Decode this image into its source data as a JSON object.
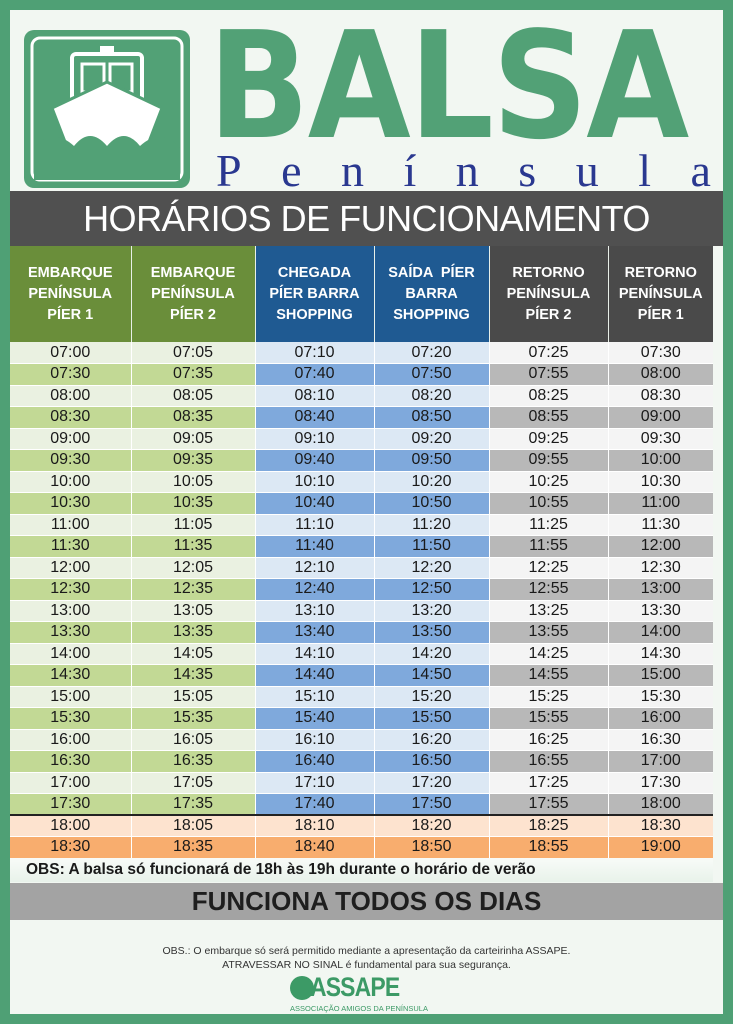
{
  "header": {
    "logo_icon": "ferry-boat-icon",
    "title": "BALSA",
    "subtitle_letters": [
      "P",
      "e",
      "n",
      "í",
      "n",
      "s",
      "u",
      "l",
      "a"
    ],
    "subtitle": "Península",
    "colors": {
      "brand_green": "#52a176",
      "subtitle_blue": "#2a3890"
    }
  },
  "banner": {
    "title": "HORÁRIOS DE FUNCIONAMENTO"
  },
  "table": {
    "columns": [
      {
        "line1": "EMBARQUE",
        "line2": "PENÍNSULA",
        "line3": "PÍER 1",
        "group": "green"
      },
      {
        "line1": "EMBARQUE",
        "line2": "PENÍNSULA",
        "line3": "PÍER 2",
        "group": "green"
      },
      {
        "line1": "CHEGADA",
        "line2": "PÍER BARRA",
        "line3": "SHOPPING",
        "group": "blue"
      },
      {
        "line1": "SAÍDA  PÍER",
        "line2": "BARRA",
        "line3": "SHOPPING",
        "group": "blue"
      },
      {
        "line1": "RETORNO",
        "line2": "PENÍNSULA",
        "line3": "PÍER 2",
        "group": "dark"
      },
      {
        "line1": "RETORNO",
        "line2": "PENÍNSULA",
        "line3": "PÍER 1",
        "group": "dark"
      }
    ],
    "rows": [
      [
        "07:00",
        "07:05",
        "07:10",
        "07:20",
        "07:25",
        "07:30"
      ],
      [
        "07:30",
        "07:35",
        "07:40",
        "07:50",
        "07:55",
        "08:00"
      ],
      [
        "08:00",
        "08:05",
        "08:10",
        "08:20",
        "08:25",
        "08:30"
      ],
      [
        "08:30",
        "08:35",
        "08:40",
        "08:50",
        "08:55",
        "09:00"
      ],
      [
        "09:00",
        "09:05",
        "09:10",
        "09:20",
        "09:25",
        "09:30"
      ],
      [
        "09:30",
        "09:35",
        "09:40",
        "09:50",
        "09:55",
        "10:00"
      ],
      [
        "10:00",
        "10:05",
        "10:10",
        "10:20",
        "10:25",
        "10:30"
      ],
      [
        "10:30",
        "10:35",
        "10:40",
        "10:50",
        "10:55",
        "11:00"
      ],
      [
        "11:00",
        "11:05",
        "11:10",
        "11:20",
        "11:25",
        "11:30"
      ],
      [
        "11:30",
        "11:35",
        "11:40",
        "11:50",
        "11:55",
        "12:00"
      ],
      [
        "12:00",
        "12:05",
        "12:10",
        "12:20",
        "12:25",
        "12:30"
      ],
      [
        "12:30",
        "12:35",
        "12:40",
        "12:50",
        "12:55",
        "13:00"
      ],
      [
        "13:00",
        "13:05",
        "13:10",
        "13:20",
        "13:25",
        "13:30"
      ],
      [
        "13:30",
        "13:35",
        "13:40",
        "13:50",
        "13:55",
        "14:00"
      ],
      [
        "14:00",
        "14:05",
        "14:10",
        "14:20",
        "14:25",
        "14:30"
      ],
      [
        "14:30",
        "14:35",
        "14:40",
        "14:50",
        "14:55",
        "15:00"
      ],
      [
        "15:00",
        "15:05",
        "15:10",
        "15:20",
        "15:25",
        "15:30"
      ],
      [
        "15:30",
        "15:35",
        "15:40",
        "15:50",
        "15:55",
        "16:00"
      ],
      [
        "16:00",
        "16:05",
        "16:10",
        "16:20",
        "16:25",
        "16:30"
      ],
      [
        "16:30",
        "16:35",
        "16:40",
        "16:50",
        "16:55",
        "17:00"
      ],
      [
        "17:00",
        "17:05",
        "17:10",
        "17:20",
        "17:25",
        "17:30"
      ],
      [
        "17:30",
        "17:35",
        "17:40",
        "17:50",
        "17:55",
        "18:00"
      ]
    ],
    "summer_rows": [
      [
        "18:00",
        "18:05",
        "18:10",
        "18:20",
        "18:25",
        "18:30"
      ],
      [
        "18:30",
        "18:35",
        "18:40",
        "18:50",
        "18:55",
        "19:00"
      ]
    ],
    "colors": {
      "green_header": "#6a8e3a",
      "blue_header": "#1f5a92",
      "dark_header": "#4a4a4a",
      "summer_light": "#fde3cf",
      "summer_dark": "#f8ad6e"
    }
  },
  "obs_summer": "OBS: A balsa só funcionará de 18h às 19h durante o horário de verão",
  "daily_banner": "FUNCIONA TODOS OS DIAS",
  "footer": {
    "note_line1": "OBS.: O embarque só será permitido mediante a apresentação da carteirinha ASSAPE.",
    "note_line2": "ATRAVESSAR NO SINAL é fundamental para sua segurança.",
    "org_logo_icon": "globe-icon",
    "org_name": "ASSAPE",
    "org_full": "ASSOCIAÇÃO AMIGOS DA PENÍNSULA"
  }
}
